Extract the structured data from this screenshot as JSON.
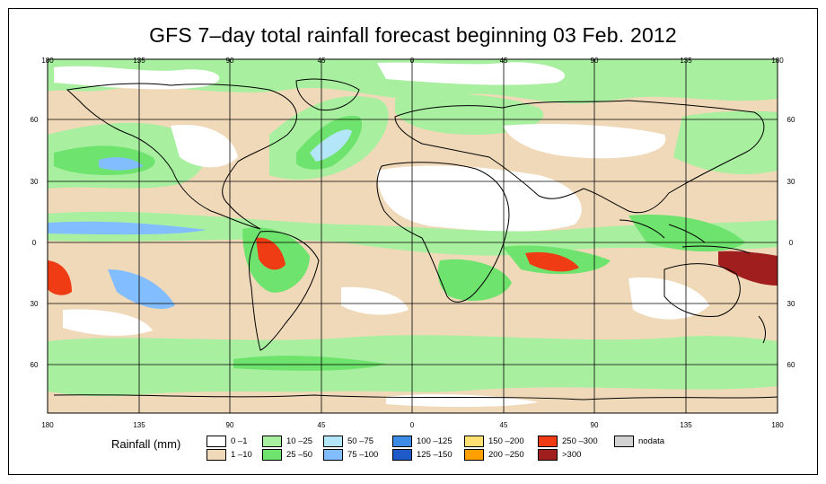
{
  "title": "GFS 7–day total rainfall forecast beginning 03 Feb. 2012",
  "axes": {
    "lon_labels": [
      "180",
      "135",
      "90",
      "45",
      "0",
      "45",
      "90",
      "135",
      "180"
    ],
    "lat_labels": [
      "60",
      "30",
      "0",
      "30",
      "60"
    ],
    "lat_values": [
      60,
      30,
      0,
      -30,
      -60
    ],
    "lon_values": [
      -180,
      -135,
      -90,
      -45,
      0,
      45,
      90,
      135,
      180
    ],
    "lat_range": [
      -90,
      90
    ],
    "lon_range": [
      -180,
      180
    ]
  },
  "legend": {
    "title": "Rainfall (mm)",
    "items": [
      {
        "label": "0 –1",
        "color": "#ffffff"
      },
      {
        "label": "1 –10",
        "color": "#efd9b9"
      },
      {
        "label": "10 –25",
        "color": "#a8f0a0"
      },
      {
        "label": "25 –50",
        "color": "#6ee46e"
      },
      {
        "label": "50 –75",
        "color": "#b4e6fa"
      },
      {
        "label": "75 –100",
        "color": "#82beff"
      },
      {
        "label": "100 –125",
        "color": "#3c8ce6"
      },
      {
        "label": "125 –150",
        "color": "#1e5ac8"
      },
      {
        "label": "150 –200",
        "color": "#ffe070"
      },
      {
        "label": "200 –250",
        "color": "#ffa000"
      },
      {
        "label": "250 –300",
        "color": "#f03c14"
      },
      {
        "label": ">300",
        "color": "#a01e1e"
      },
      {
        "label": "nodata",
        "color": "#d2d2d2"
      }
    ]
  }
}
